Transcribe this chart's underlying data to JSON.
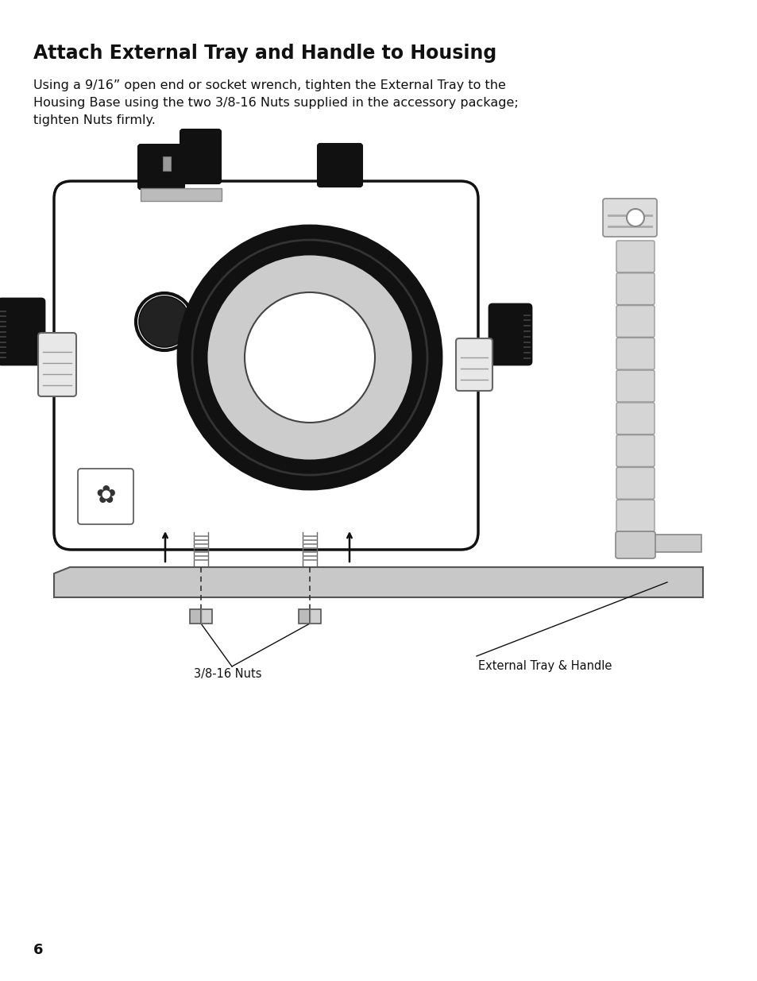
{
  "title": "Attach External Tray and Handle to Housing",
  "body_text": "Using a 9/16” open end or socket wrench, tighten the External Tray to the\nHousing Base using the two 3/8-16 Nuts supplied in the accessory package;\ntighten Nuts firmly.",
  "label_nuts": "3/8-16 Nuts",
  "label_tray": "External Tray & Handle",
  "page_number": "6",
  "bg_color": "#ffffff",
  "housing_fill": "#ffffff",
  "housing_stroke": "#111111",
  "lens_gray": "#cccccc",
  "dark": "#111111",
  "mid_gray": "#aaaaaa",
  "light_gray": "#dddddd",
  "tray_gray": "#c8c8c8"
}
